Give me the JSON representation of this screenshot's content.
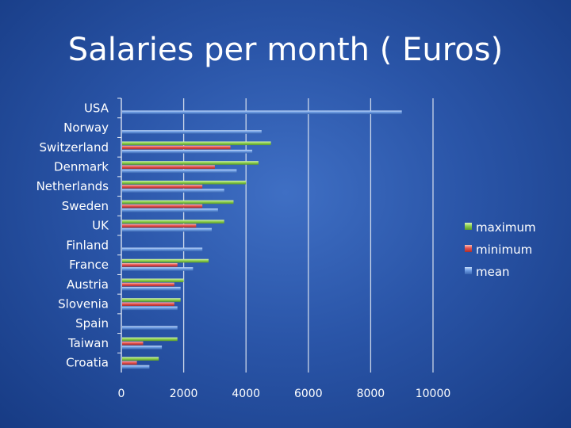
{
  "chart_data": {
    "type": "bar",
    "orientation": "horizontal",
    "title": "Salaries per month ( Euros)",
    "xlabel": "",
    "ylabel": "",
    "xlim": [
      0,
      10000
    ],
    "ticks": [
      "0",
      "2000",
      "4000",
      "6000",
      "8000",
      "10000"
    ],
    "grid": true,
    "legend_position": "right",
    "categories": [
      "USA",
      "Norway",
      "Switzerland",
      "Denmark",
      "Netherlands",
      "Sweden",
      "UK",
      "Finland",
      "France",
      "Austria",
      "Slovenia",
      "Spain",
      "Taiwan",
      "Croatia"
    ],
    "series": [
      {
        "name": "maximum",
        "color": "#8fd14f",
        "values": [
          null,
          null,
          4800,
          4400,
          4000,
          3600,
          3300,
          null,
          2800,
          2000,
          1900,
          null,
          1800,
          1200
        ]
      },
      {
        "name": "minimum",
        "color": "#e8524f",
        "values": [
          null,
          null,
          3500,
          3000,
          2600,
          2600,
          2400,
          null,
          1800,
          1700,
          1700,
          null,
          700,
          500
        ]
      },
      {
        "name": "mean",
        "color": "#4f87d6",
        "values": [
          9000,
          4500,
          4200,
          3700,
          3300,
          3100,
          2900,
          2600,
          2300,
          1900,
          1800,
          1800,
          1300,
          900
        ]
      }
    ]
  }
}
